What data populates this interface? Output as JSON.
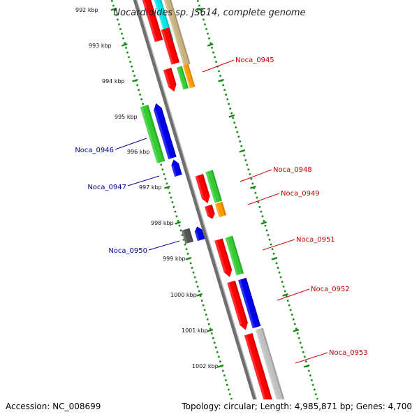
{
  "title": "Nocardioides sp. JS614, complete genome",
  "accession": "Accession: NC_008699",
  "topology": "Topology: circular; Length: 4,985,871 bp; Genes: 4,700",
  "scale_labels": [
    "992 kbp",
    "993 kbp",
    "994 kbp",
    "995 kbp",
    "996 kbp",
    "997 kbp",
    "998 kbp",
    "999 kbp",
    "1000 kbp",
    "1001 kbp",
    "1002 kbp"
  ],
  "gene_labels": [
    {
      "text": "Noca_0945",
      "color": "#cc0000"
    },
    {
      "text": "Noca_0946",
      "color": "#00009c"
    },
    {
      "text": "Noca_0947",
      "color": "#00009c"
    },
    {
      "text": "Noca_0948",
      "color": "#cc0000"
    },
    {
      "text": "Noca_0949",
      "color": "#cc0000"
    },
    {
      "text": "Noca_0950",
      "color": "#00009c"
    },
    {
      "text": "Noca_0951",
      "color": "#cc0000"
    },
    {
      "text": "Noca_0952",
      "color": "#cc0000"
    },
    {
      "text": "Noca_0953",
      "color": "#cc0000"
    }
  ],
  "colors": {
    "backbone": "#8a8a8a",
    "scale_dots": "#1a8a1a",
    "red_gene": "#ff0000",
    "blue_gene": "#0000ee",
    "green_gene": "#33cc33",
    "orange_gene": "#ff9900",
    "cyan_gene": "#00e5e5",
    "tan_gene": "#c8b280",
    "gray_gene": "#c0c0c0",
    "dark_gene": "#555555"
  }
}
